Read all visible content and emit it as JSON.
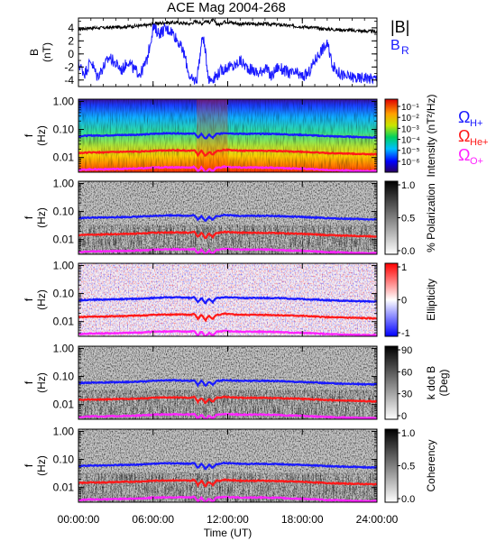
{
  "title": "ACE Mag 2004-268",
  "colors": {
    "b_total": "#000000",
    "b_r": "#1a1aff",
    "h_plus": "#1a1aff",
    "he_plus": "#ff1a1a",
    "o_plus": "#ff22ff"
  },
  "chart_data": [
    {
      "type": "line",
      "panel": "magnetic-field",
      "ylabel": [
        "B",
        "(nT)"
      ],
      "ylim": [
        -5,
        5.5
      ],
      "yticks": [
        "4",
        "2",
        "0",
        "-2",
        "-4"
      ],
      "ytick_values": [
        4,
        2,
        0,
        -2,
        -4
      ],
      "xlim": [
        0,
        24
      ],
      "series": [
        {
          "name": "|B|",
          "label_main": "|B|",
          "label_sub": "",
          "color": "#000000",
          "x": [
            0,
            1,
            2,
            3,
            4,
            5,
            5.5,
            6,
            6.5,
            7,
            8,
            8.5,
            9,
            9.3,
            9.6,
            9.9,
            10.2,
            10.5,
            10.8,
            11.1,
            11.4,
            11.7,
            12,
            13,
            14,
            15,
            16,
            17,
            18,
            19,
            20,
            21,
            22,
            23,
            24
          ],
          "y": [
            3.8,
            4.0,
            4.0,
            4.1,
            4.2,
            4.3,
            4.4,
            4.6,
            4.7,
            4.8,
            4.8,
            4.7,
            4.6,
            4.9,
            5.0,
            4.6,
            5.1,
            4.8,
            5.2,
            4.6,
            4.5,
            5.0,
            4.9,
            4.6,
            4.6,
            4.6,
            4.5,
            4.3,
            4.2,
            4.0,
            3.8,
            3.7,
            3.6,
            3.5,
            3.4
          ]
        },
        {
          "name": "B_R",
          "label_main": "B",
          "label_sub": "R",
          "color": "#1a1aff",
          "x": [
            0,
            0.5,
            1,
            1.5,
            2,
            2.5,
            3,
            3.5,
            4,
            4.5,
            5,
            5.5,
            5.8,
            6,
            6.5,
            7,
            7.5,
            8,
            8.5,
            9,
            9.5,
            10,
            10.5,
            11,
            11.5,
            12,
            12.5,
            13,
            13.5,
            14,
            14.5,
            15,
            15.5,
            16,
            16.5,
            17,
            17.5,
            18,
            18.5,
            19,
            19.5,
            20,
            20.5,
            21,
            21.5,
            22,
            22.5,
            23,
            23.5,
            24
          ],
          "y": [
            -1.5,
            -3.0,
            -1.0,
            -3.5,
            -2.0,
            -0.5,
            -1.5,
            -2.5,
            -1.0,
            -2.5,
            -3.0,
            -1.0,
            2.0,
            4.0,
            3.2,
            3.8,
            3.5,
            2.0,
            0.0,
            -4.0,
            -4.0,
            3.0,
            -4.0,
            -3.5,
            -2.5,
            -2.0,
            -2.0,
            -1.0,
            -2.0,
            -2.5,
            -3.0,
            -2.0,
            -3.5,
            -2.0,
            -2.5,
            -3.0,
            -3.0,
            -3.5,
            -3.0,
            -1.0,
            0.5,
            1.5,
            -2.0,
            -3.0,
            -3.5,
            -3.5,
            -3.8,
            -3.5,
            -3.8,
            -3.8
          ]
        }
      ]
    },
    {
      "type": "heatmap",
      "panel": "intensity",
      "ylabel": [
        "f",
        "(Hz)"
      ],
      "colorbar_label": "Intensity (nT²/Hz)",
      "colorbar_ticks": [
        "10⁻¹",
        "10⁻²",
        "10⁻³",
        "10⁻⁴",
        "10⁻⁵",
        "10⁻⁶"
      ],
      "colorbar_range": [
        1e-07,
        1
      ],
      "colorscale": "rainbow"
    },
    {
      "type": "heatmap",
      "panel": "polarization",
      "ylabel": [
        "f",
        "(Hz)"
      ],
      "colorbar_label": "% Polarization",
      "colorbar_ticks": [
        "1.0",
        "0.5",
        "0.0"
      ],
      "colorbar_range": [
        0,
        1
      ],
      "colorscale": "gray"
    },
    {
      "type": "heatmap",
      "panel": "ellipticity",
      "ylabel": [
        "f",
        "(Hz)"
      ],
      "colorbar_label": "Ellipticity",
      "colorbar_ticks": [
        "1",
        "0",
        "-1"
      ],
      "colorbar_range": [
        -1,
        1
      ],
      "colorscale": "bwr"
    },
    {
      "type": "heatmap",
      "panel": "k-dot-b",
      "ylabel": [
        "f",
        "(Hz)"
      ],
      "colorbar_label": "k dot B (Deg)",
      "colorbar_label_lines": [
        "k dot B",
        "(Deg)"
      ],
      "colorbar_ticks": [
        "90",
        "60",
        "30",
        "0"
      ],
      "colorbar_range": [
        0,
        90
      ],
      "colorscale": "gray"
    },
    {
      "type": "heatmap",
      "panel": "coherency",
      "ylabel": [
        "f",
        "(Hz)"
      ],
      "colorbar_label": "Coherency",
      "colorbar_ticks": [
        "1.0",
        "0.5",
        "0.0"
      ],
      "colorbar_range": [
        0,
        1
      ],
      "colorscale": "gray"
    }
  ],
  "frequency_axis": {
    "scale": "log",
    "ylim": [
      0.003,
      1.2
    ],
    "ticks": [
      "1.00",
      "0.10",
      "0.01"
    ],
    "tick_values": [
      1.0,
      0.1,
      0.01
    ]
  },
  "gyrofrequency_legend": [
    {
      "main": "Ω",
      "sub": "H+",
      "color": "#1a1aff"
    },
    {
      "main": "Ω",
      "sub": "He+",
      "color": "#ff1a1a"
    },
    {
      "main": "Ω",
      "sub": "O+",
      "color": "#ff22ff"
    }
  ],
  "gyrofrequency_lines": {
    "x": [
      0,
      1,
      2,
      3,
      4,
      5,
      5.5,
      6,
      7,
      8,
      9,
      9.3,
      9.6,
      9.9,
      10.2,
      10.5,
      10.8,
      11.1,
      11.4,
      11.7,
      12,
      13,
      14,
      15,
      16,
      17,
      18,
      19,
      20,
      21,
      22,
      23,
      24
    ],
    "h_plus_hz": [
      0.058,
      0.061,
      0.061,
      0.063,
      0.064,
      0.066,
      0.067,
      0.07,
      0.073,
      0.073,
      0.07,
      0.075,
      0.05,
      0.07,
      0.045,
      0.065,
      0.05,
      0.07,
      0.07,
      0.075,
      0.074,
      0.07,
      0.07,
      0.07,
      0.069,
      0.066,
      0.064,
      0.061,
      0.058,
      0.056,
      0.055,
      0.053,
      0.052
    ],
    "he_plus_hz": [
      0.0145,
      0.0152,
      0.0152,
      0.0157,
      0.016,
      0.0165,
      0.0168,
      0.0175,
      0.018,
      0.018,
      0.0175,
      0.019,
      0.0125,
      0.0175,
      0.011,
      0.016,
      0.0125,
      0.0175,
      0.0175,
      0.019,
      0.0185,
      0.0175,
      0.0175,
      0.0175,
      0.017,
      0.0165,
      0.016,
      0.0152,
      0.0145,
      0.014,
      0.0137,
      0.0133,
      0.013
    ],
    "o_plus_hz": [
      0.0036,
      0.0038,
      0.0038,
      0.0039,
      0.004,
      0.0041,
      0.0042,
      0.0044,
      0.0045,
      0.0045,
      0.0044,
      0.0047,
      0.0032,
      0.0044,
      0.0028,
      0.004,
      0.0032,
      0.0044,
      0.0044,
      0.0047,
      0.0046,
      0.0044,
      0.0044,
      0.0044,
      0.0043,
      0.0041,
      0.004,
      0.0038,
      0.0036,
      0.0035,
      0.0034,
      0.0033,
      0.0033
    ]
  },
  "time_axis": {
    "xlim": [
      0,
      24
    ],
    "ticks": [
      "00:00:00",
      "06:00:00",
      "12:00:00",
      "18:00:00",
      "24:00:00"
    ],
    "tick_values": [
      0,
      6,
      12,
      18,
      24
    ],
    "label": "Time (UT)"
  }
}
